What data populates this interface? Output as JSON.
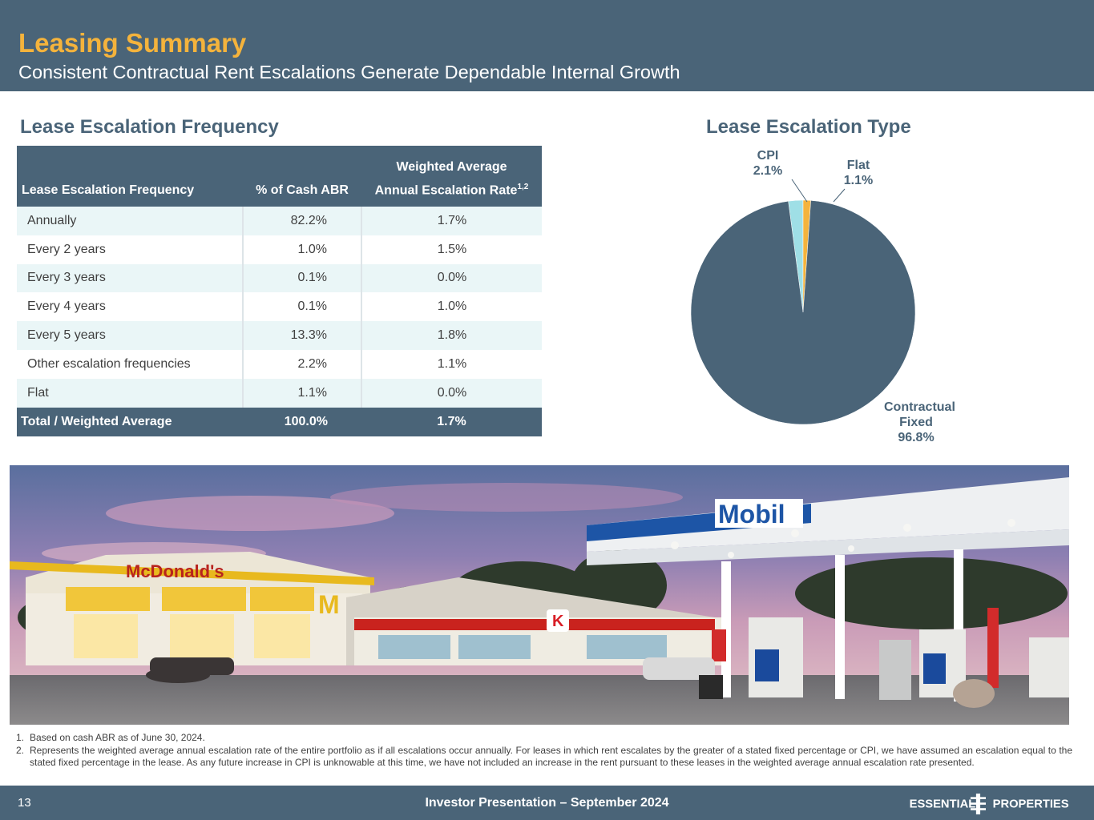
{
  "header": {
    "title": "Leasing Summary",
    "subtitle": "Consistent Contractual Rent Escalations Generate Dependable Internal Growth"
  },
  "left_section": {
    "title": "Lease Escalation Frequency",
    "table": {
      "header_top": "Weighted Average",
      "col0": "Lease Escalation Frequency",
      "col1": "% of Cash ABR",
      "col2": "Annual Escalation Rate",
      "col2_sup": "1,2",
      "rows": [
        {
          "label": "Annually",
          "abr": "82.2%",
          "rate": "1.7%"
        },
        {
          "label": "Every 2 years",
          "abr": "1.0%",
          "rate": "1.5%"
        },
        {
          "label": "Every 3 years",
          "abr": "0.1%",
          "rate": "0.0%"
        },
        {
          "label": "Every 4 years",
          "abr": "0.1%",
          "rate": "1.0%"
        },
        {
          "label": "Every 5 years",
          "abr": "13.3%",
          "rate": "1.8%"
        },
        {
          "label": "Other escalation frequencies",
          "abr": "2.2%",
          "rate": "1.1%"
        },
        {
          "label": "Flat",
          "abr": "1.1%",
          "rate": "0.0%"
        }
      ],
      "total": {
        "label": "Total / Weighted Average",
        "abr": "100.0%",
        "rate": "1.7%"
      }
    }
  },
  "right_section": {
    "title": "Lease Escalation Type"
  },
  "chart_data": {
    "type": "pie",
    "slices": [
      {
        "name": "CPI",
        "value": 2.1,
        "label": "2.1%",
        "color": "#9fdfe6"
      },
      {
        "name": "Flat",
        "value": 1.1,
        "label": "1.1%",
        "color": "#f4b33c"
      },
      {
        "name": "Contractual Fixed",
        "value": 96.8,
        "label": "96.8%",
        "color": "#4a6478"
      }
    ]
  },
  "photo": {
    "mobil_sign": "Mobil",
    "mcdonalds_sign": "McDonald's",
    "circle_k_letter": "K"
  },
  "footnotes": [
    {
      "num": "1.",
      "text": "Based on cash ABR as of June 30, 2024."
    },
    {
      "num": "2.",
      "text": "Represents the weighted average annual escalation rate of the entire portfolio as if all escalations occur annually. For leases in which rent escalates by the greater of a stated fixed percentage or CPI, we have assumed an escalation equal to the stated fixed percentage in the lease. As any future increase in CPI is unknowable at this time, we have not included an increase in the rent pursuant to these leases in the weighted average annual escalation rate presented."
    }
  ],
  "footer": {
    "page_number": "13",
    "center_text": "Investor Presentation – September 2024",
    "logo_left": "ESSENTIAL",
    "logo_right": "PROPERTIES"
  }
}
